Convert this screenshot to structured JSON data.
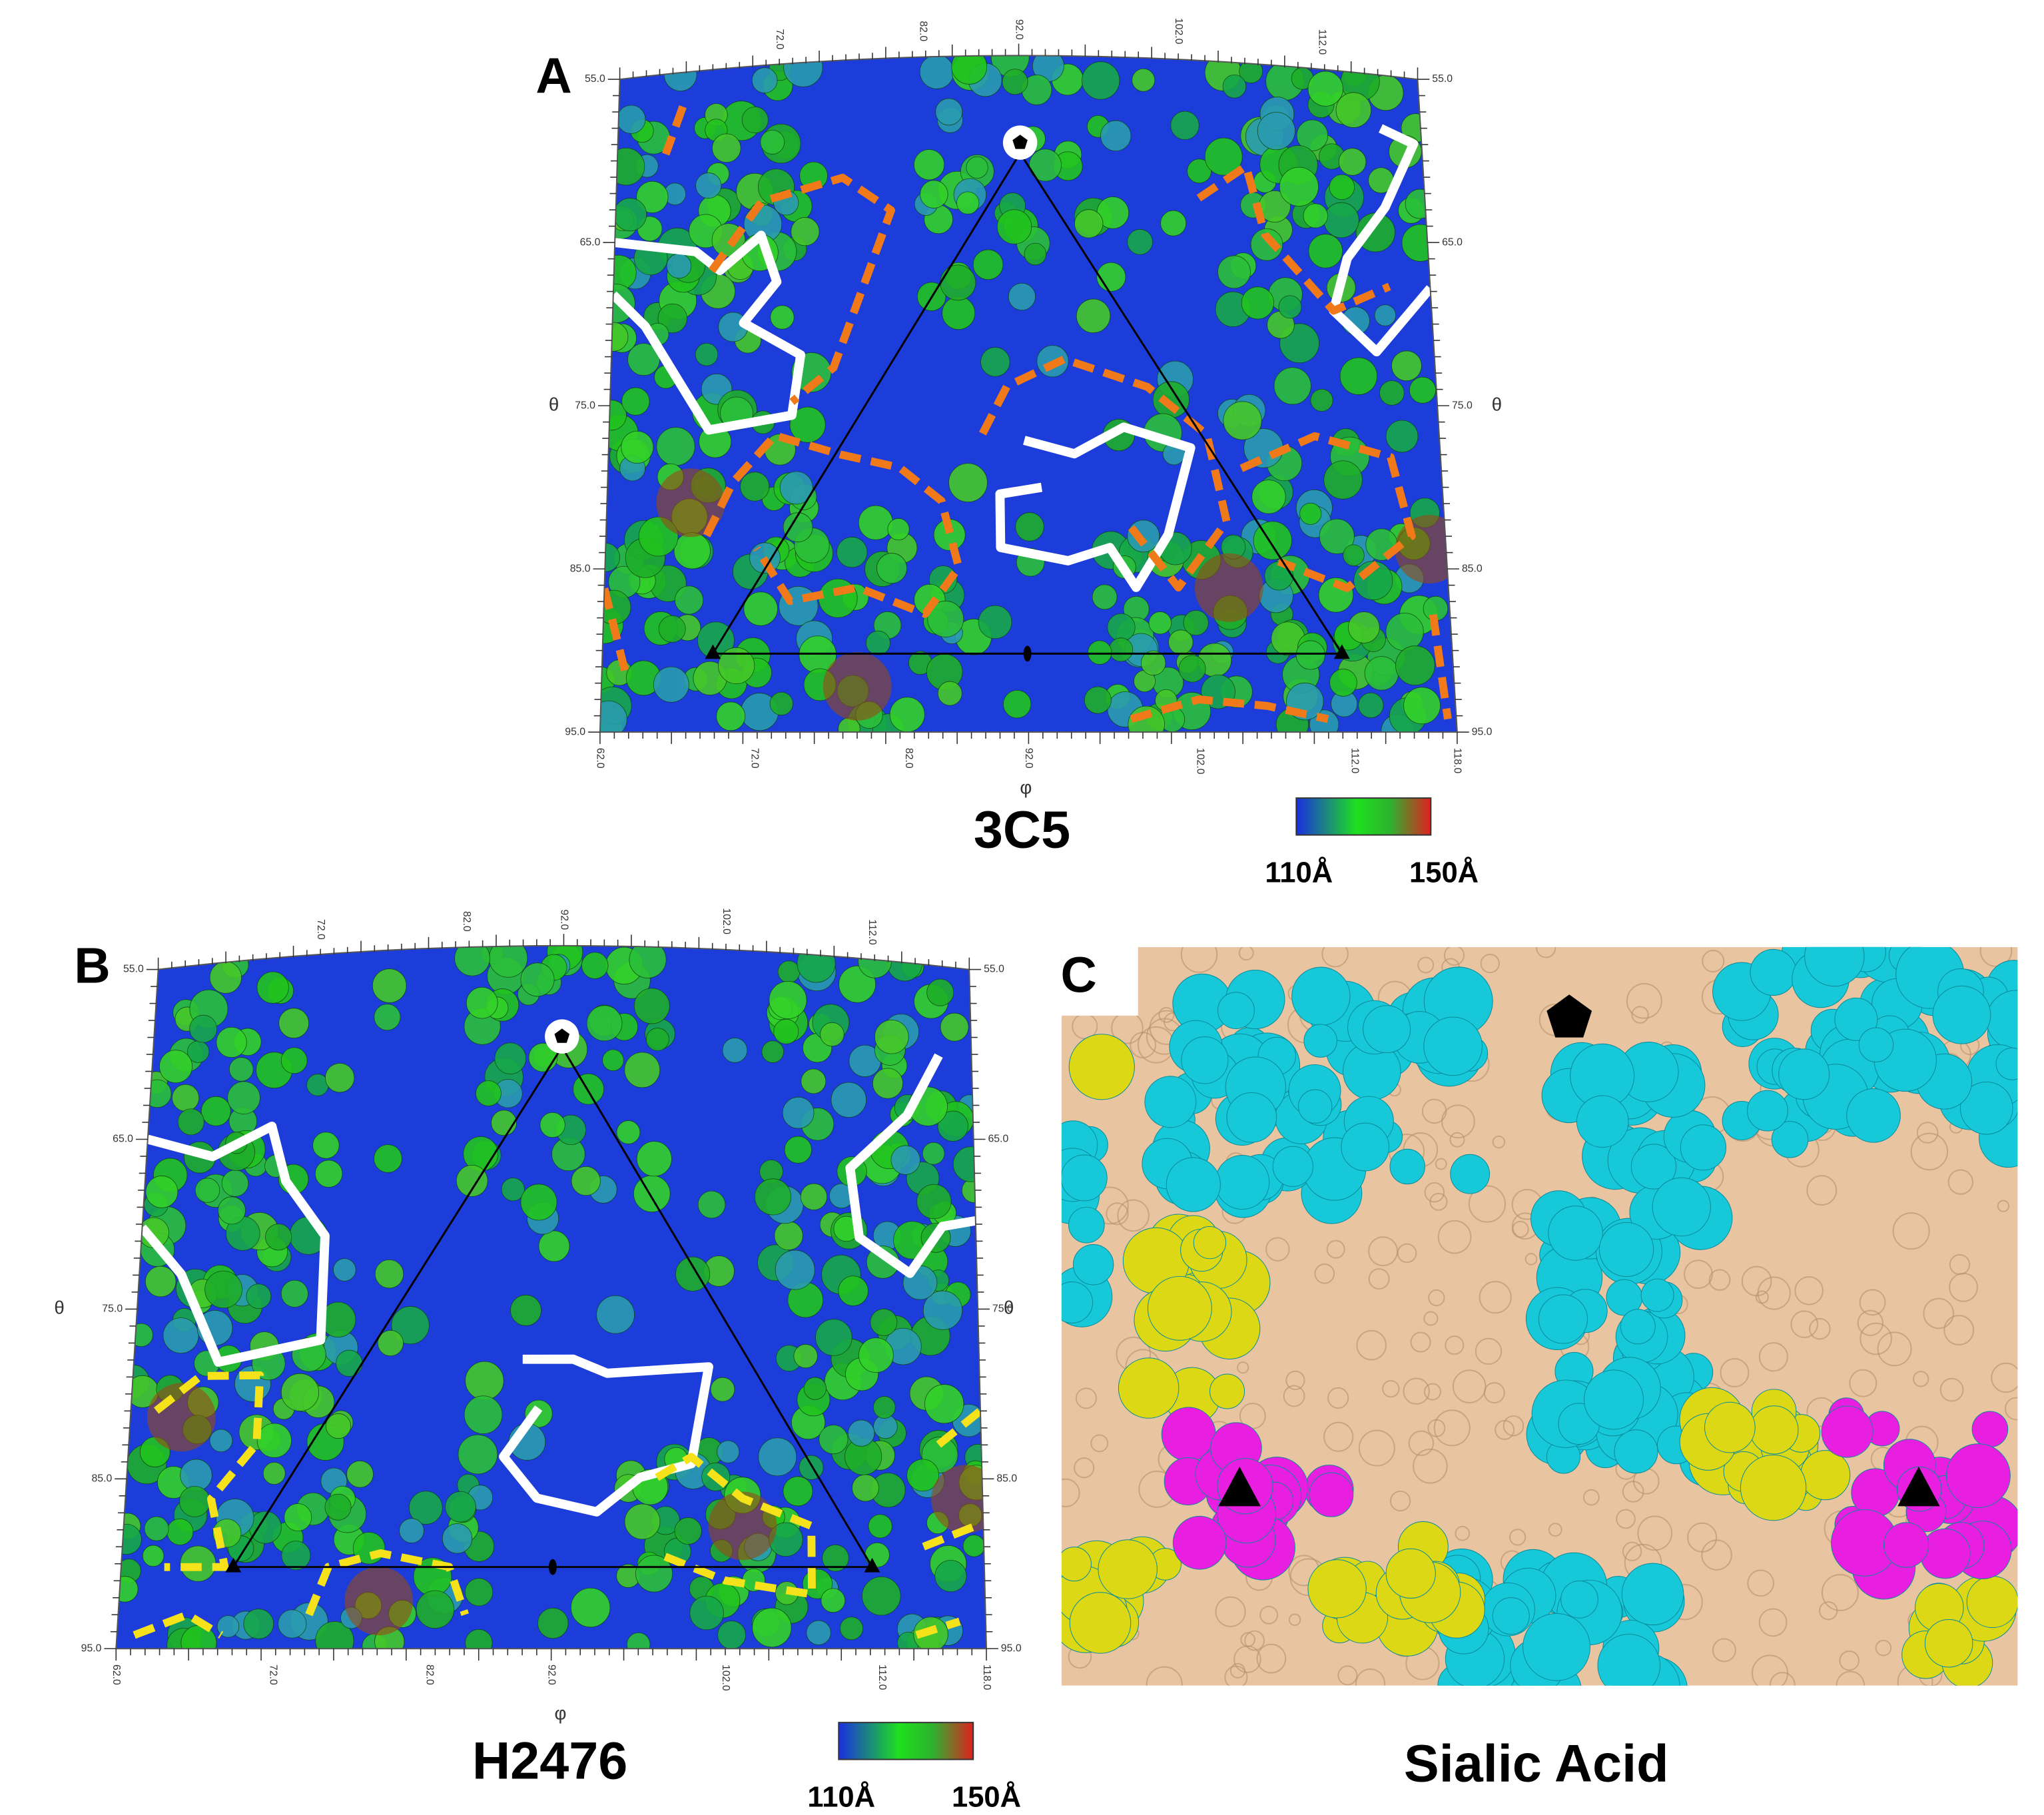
{
  "panels": [
    {
      "label": "A",
      "title": "3C5",
      "phi_label": "φ",
      "theta_label": "θ",
      "phi_ticks": [
        "62.0",
        "72.0",
        "82.0",
        "92.0",
        "102.0",
        "112.0",
        "118.0"
      ],
      "top_ticks": [
        "72.0",
        "82.0",
        "92.0",
        "102.0",
        "112.0"
      ],
      "theta_ticks": [
        "55.0",
        "65.0",
        "75.0",
        "85.0",
        "95.0"
      ],
      "colorbar": {
        "min_label": "110Å",
        "max_label": "150Å"
      }
    },
    {
      "label": "B",
      "title": "H2476",
      "phi_label": "φ",
      "theta_label": "θ",
      "phi_ticks": [
        "62.0",
        "72.0",
        "82.0",
        "92.0",
        "102.0",
        "112.0",
        "118.0"
      ],
      "top_ticks": [
        "72.0",
        "82.0",
        "92.0",
        "102.0",
        "112.0"
      ],
      "theta_ticks": [
        "55.0",
        "65.0",
        "75.0",
        "85.0",
        "95.0"
      ],
      "colorbar": {
        "min_label": "110Å",
        "max_label": "150Å"
      }
    },
    {
      "label": "C",
      "title": "Sialic Acid"
    }
  ]
}
